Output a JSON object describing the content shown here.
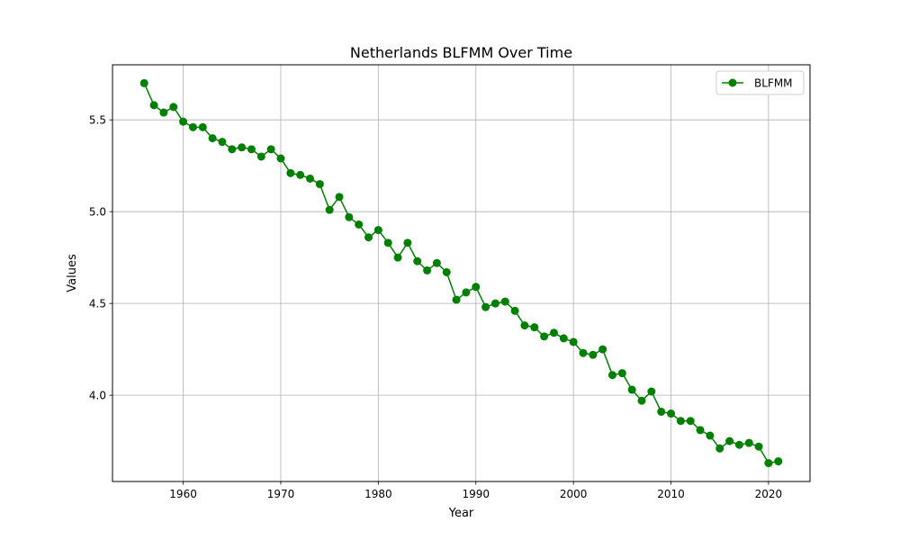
{
  "chart_data": {
    "type": "line",
    "title": "Netherlands BLFMM Over Time",
    "xlabel": "Year",
    "ylabel": "Values",
    "xlim": [
      1952.75,
      2024.25
    ],
    "ylim": [
      3.53,
      5.8
    ],
    "xticks": [
      1960,
      1970,
      1980,
      1990,
      2000,
      2010,
      2020
    ],
    "xtick_labels": [
      "1960",
      "1970",
      "1980",
      "1990",
      "2000",
      "2010",
      "2020"
    ],
    "yticks": [
      4.0,
      4.5,
      5.0,
      5.5
    ],
    "ytick_labels": [
      "4.0",
      "4.5",
      "5.0",
      "5.5"
    ],
    "grid": true,
    "legend_position": "top-right",
    "series": [
      {
        "name": "BLFMM",
        "color": "#008000",
        "marker": "circle",
        "x": [
          1956,
          1957,
          1958,
          1959,
          1960,
          1961,
          1962,
          1963,
          1964,
          1965,
          1966,
          1967,
          1968,
          1969,
          1970,
          1971,
          1972,
          1973,
          1974,
          1975,
          1976,
          1977,
          1978,
          1979,
          1980,
          1981,
          1982,
          1983,
          1984,
          1985,
          1986,
          1987,
          1988,
          1989,
          1990,
          1991,
          1992,
          1993,
          1994,
          1995,
          1996,
          1997,
          1998,
          1999,
          2000,
          2001,
          2002,
          2003,
          2004,
          2005,
          2006,
          2007,
          2008,
          2009,
          2010,
          2011,
          2012,
          2013,
          2014,
          2015,
          2016,
          2017,
          2018,
          2019,
          2020,
          2021
        ],
        "y": [
          5.7,
          5.58,
          5.54,
          5.57,
          5.49,
          5.46,
          5.46,
          5.4,
          5.38,
          5.34,
          5.35,
          5.34,
          5.3,
          5.34,
          5.29,
          5.21,
          5.2,
          5.18,
          5.15,
          5.01,
          5.08,
          4.97,
          4.93,
          4.86,
          4.9,
          4.83,
          4.75,
          4.83,
          4.73,
          4.68,
          4.72,
          4.67,
          4.52,
          4.56,
          4.59,
          4.48,
          4.5,
          4.51,
          4.46,
          4.38,
          4.37,
          4.32,
          4.34,
          4.31,
          4.29,
          4.23,
          4.22,
          4.25,
          4.11,
          4.12,
          4.03,
          3.97,
          4.02,
          3.91,
          3.9,
          3.86,
          3.86,
          3.81,
          3.78,
          3.71,
          3.75,
          3.73,
          3.74,
          3.72,
          3.63,
          3.64
        ]
      }
    ]
  }
}
